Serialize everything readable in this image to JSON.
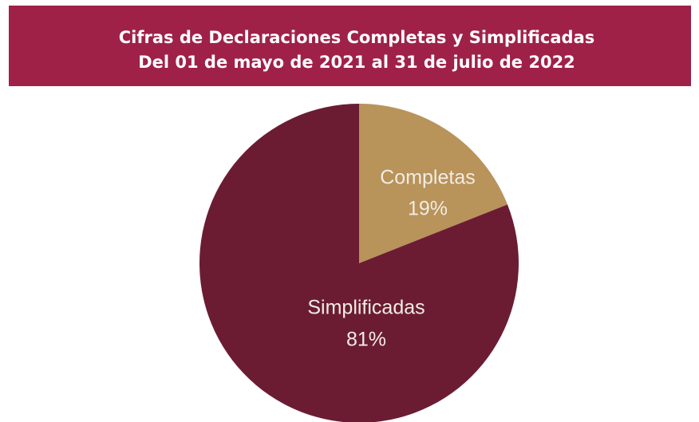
{
  "chart_data": {
    "type": "pie",
    "title": "Cifras de Declaraciones Completas y Simplificadas",
    "subtitle": "Del 01 de mayo de 2021 al 31 de julio de 2022",
    "categories": [
      "Completas",
      "Simplificadas"
    ],
    "values": [
      19,
      81
    ],
    "value_labels": [
      "19%",
      "81%"
    ],
    "colors": [
      "#b8935a",
      "#6b1c33"
    ]
  }
}
